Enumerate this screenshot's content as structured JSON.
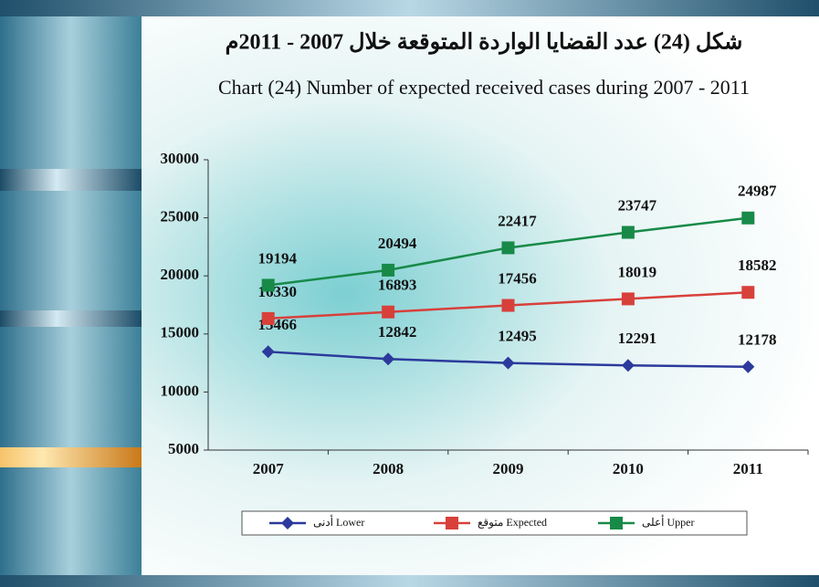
{
  "chart_data": {
    "type": "line",
    "title": "شكل (24) عدد القضايا الواردة المتوقعة خلال 2007 - 2011م",
    "subtitle": "Chart (24) Number of expected received cases during 2007 - 2011",
    "categories": [
      "2007",
      "2008",
      "2009",
      "2010",
      "2011"
    ],
    "series": [
      {
        "name": "أدنى Lower",
        "color": "#2b3a9c",
        "marker": "diamond",
        "values": [
          13466,
          12842,
          12495,
          12291,
          12178
        ]
      },
      {
        "name": "متوقع Expected",
        "color": "#d8403a",
        "marker": "square",
        "values": [
          16330,
          16893,
          17456,
          18019,
          18582
        ]
      },
      {
        "name": "أعلى Upper",
        "color": "#178a48",
        "marker": "square",
        "values": [
          19194,
          20494,
          22417,
          23747,
          24987
        ]
      }
    ],
    "ylim": [
      5000,
      30000
    ],
    "yticks": [
      5000,
      10000,
      15000,
      20000,
      25000,
      30000
    ],
    "legend": "bottom"
  }
}
